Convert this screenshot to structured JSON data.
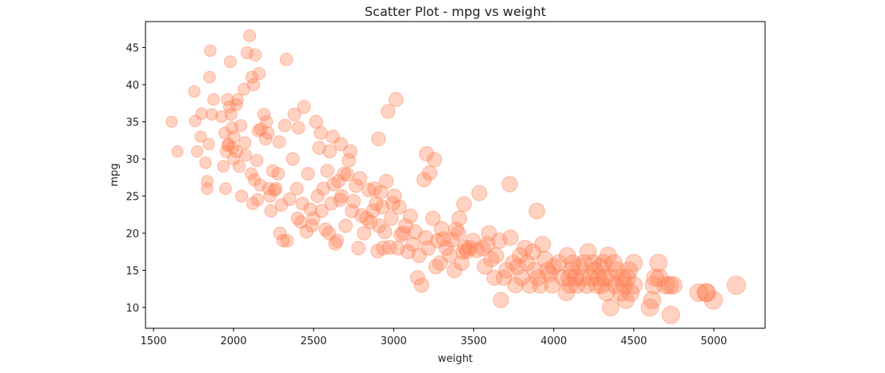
{
  "chart_data": {
    "type": "scatter",
    "title": "Scatter Plot - mpg vs weight",
    "xlabel": "weight",
    "ylabel": "mpg",
    "xlim": [
      1450,
      5320
    ],
    "ylim": [
      7.2,
      48.5
    ],
    "xticks": [
      1500,
      2000,
      2500,
      3000,
      3500,
      4000,
      4500,
      5000
    ],
    "yticks": [
      10,
      15,
      20,
      25,
      30,
      35,
      40,
      45
    ],
    "grid": false,
    "color": "#ff7f50",
    "opacity": 0.35,
    "size_note": "marker area increases with weight",
    "points": [
      [
        1613,
        35
      ],
      [
        1649,
        31
      ],
      [
        1755,
        39.1
      ],
      [
        1760,
        35.1
      ],
      [
        1773,
        31
      ],
      [
        1795,
        33
      ],
      [
        1800,
        36.1
      ],
      [
        1825,
        29.5
      ],
      [
        1835,
        26
      ],
      [
        1836,
        27
      ],
      [
        1845,
        32
      ],
      [
        1850,
        41
      ],
      [
        1855,
        44.6
      ],
      [
        1865,
        36
      ],
      [
        1875,
        38
      ],
      [
        1925,
        35.7
      ],
      [
        1937,
        29
      ],
      [
        1945,
        33.5
      ],
      [
        1950,
        26
      ],
      [
        1955,
        31
      ],
      [
        1963,
        38
      ],
      [
        1965,
        31.8
      ],
      [
        1968,
        32
      ],
      [
        1975,
        37
      ],
      [
        1980,
        43.1
      ],
      [
        1985,
        36
      ],
      [
        1990,
        34.2
      ],
      [
        1995,
        31.5
      ],
      [
        2000,
        30
      ],
      [
        2003,
        33
      ],
      [
        2019,
        37.3
      ],
      [
        2020,
        31
      ],
      [
        2025,
        38
      ],
      [
        2035,
        29
      ],
      [
        2045,
        34.5
      ],
      [
        2050,
        25
      ],
      [
        2065,
        39.4
      ],
      [
        2070,
        32.2
      ],
      [
        2075,
        30.5
      ],
      [
        2085,
        44.3
      ],
      [
        2100,
        46.6
      ],
      [
        2110,
        28
      ],
      [
        2115,
        41
      ],
      [
        2120,
        24
      ],
      [
        2125,
        40
      ],
      [
        2130,
        27.2
      ],
      [
        2135,
        44
      ],
      [
        2145,
        29.8
      ],
      [
        2150,
        24.5
      ],
      [
        2155,
        33.8
      ],
      [
        2160,
        41.5
      ],
      [
        2165,
        26.5
      ],
      [
        2170,
        34
      ],
      [
        2190,
        36
      ],
      [
        2200,
        32.7
      ],
      [
        2205,
        35
      ],
      [
        2215,
        33.5
      ],
      [
        2220,
        26
      ],
      [
        2228,
        25
      ],
      [
        2234,
        23
      ],
      [
        2245,
        28.4
      ],
      [
        2255,
        25.8
      ],
      [
        2265,
        26
      ],
      [
        2278,
        28
      ],
      [
        2285,
        32.3
      ],
      [
        2290,
        20
      ],
      [
        2300,
        23.8
      ],
      [
        2310,
        19
      ],
      [
        2320,
        34.5
      ],
      [
        2330,
        43.4
      ],
      [
        2335,
        19
      ],
      [
        2350,
        24.6
      ],
      [
        2370,
        30
      ],
      [
        2380,
        36
      ],
      [
        2395,
        26
      ],
      [
        2400,
        22
      ],
      [
        2405,
        34.2
      ],
      [
        2420,
        21.5
      ],
      [
        2430,
        24
      ],
      [
        2440,
        37
      ],
      [
        2455,
        20.2
      ],
      [
        2465,
        28
      ],
      [
        2480,
        23.2
      ],
      [
        2490,
        21
      ],
      [
        2500,
        22
      ],
      [
        2515,
        35
      ],
      [
        2525,
        25
      ],
      [
        2535,
        31.5
      ],
      [
        2545,
        33.5
      ],
      [
        2550,
        23
      ],
      [
        2560,
        26
      ],
      [
        2575,
        20.5
      ],
      [
        2585,
        28.4
      ],
      [
        2595,
        20
      ],
      [
        2600,
        31
      ],
      [
        2610,
        24
      ],
      [
        2620,
        33
      ],
      [
        2625,
        26.6
      ],
      [
        2635,
        18.6
      ],
      [
        2645,
        19
      ],
      [
        2655,
        27
      ],
      [
        2665,
        24.5
      ],
      [
        2670,
        32
      ],
      [
        2675,
        25
      ],
      [
        2690,
        28
      ],
      [
        2700,
        21
      ],
      [
        2710,
        27.9
      ],
      [
        2720,
        29.8
      ],
      [
        2730,
        31
      ],
      [
        2740,
        23
      ],
      [
        2750,
        24.3
      ],
      [
        2765,
        26.4
      ],
      [
        2780,
        18
      ],
      [
        2790,
        27.4
      ],
      [
        2800,
        22.4
      ],
      [
        2815,
        20
      ],
      [
        2830,
        22
      ],
      [
        2845,
        25.8
      ],
      [
        2855,
        21.5
      ],
      [
        2870,
        23
      ],
      [
        2880,
        26
      ],
      [
        2890,
        24
      ],
      [
        2900,
        17.6
      ],
      [
        2905,
        32.7
      ],
      [
        2910,
        21
      ],
      [
        2920,
        25.5
      ],
      [
        2930,
        23.5
      ],
      [
        2935,
        18
      ],
      [
        2945,
        20.2
      ],
      [
        2955,
        27
      ],
      [
        2965,
        36.4
      ],
      [
        2975,
        18.1
      ],
      [
        2985,
        22
      ],
      [
        2995,
        24
      ],
      [
        3005,
        25
      ],
      [
        3015,
        38
      ],
      [
        3025,
        18
      ],
      [
        3035,
        23.5
      ],
      [
        3045,
        19.8
      ],
      [
        3060,
        20
      ],
      [
        3075,
        21
      ],
      [
        3090,
        17.5
      ],
      [
        3105,
        22.3
      ],
      [
        3120,
        18.5
      ],
      [
        3135,
        20.2
      ],
      [
        3150,
        14
      ],
      [
        3160,
        17
      ],
      [
        3175,
        13
      ],
      [
        3190,
        27.2
      ],
      [
        3200,
        19.4
      ],
      [
        3205,
        30.7
      ],
      [
        3215,
        18
      ],
      [
        3225,
        28.1
      ],
      [
        3245,
        22
      ],
      [
        3255,
        29.9
      ],
      [
        3265,
        15.5
      ],
      [
        3275,
        19
      ],
      [
        3290,
        16
      ],
      [
        3300,
        20.6
      ],
      [
        3310,
        19.2
      ],
      [
        3330,
        18
      ],
      [
        3350,
        17
      ],
      [
        3365,
        19.1
      ],
      [
        3380,
        15
      ],
      [
        3390,
        20.5
      ],
      [
        3405,
        20
      ],
      [
        3410,
        22
      ],
      [
        3425,
        16
      ],
      [
        3435,
        17.5
      ],
      [
        3440,
        23.9
      ],
      [
        3445,
        18.1
      ],
      [
        3460,
        17.6
      ],
      [
        3475,
        18
      ],
      [
        3495,
        19
      ],
      [
        3520,
        17.7
      ],
      [
        3535,
        25.4
      ],
      [
        3555,
        18
      ],
      [
        3570,
        15.5
      ],
      [
        3585,
        18.5
      ],
      [
        3595,
        20
      ],
      [
        3610,
        16.5
      ],
      [
        3630,
        14
      ],
      [
        3640,
        17
      ],
      [
        3660,
        19
      ],
      [
        3670,
        11
      ],
      [
        3690,
        14
      ],
      [
        3705,
        15
      ],
      [
        3725,
        26.6
      ],
      [
        3730,
        19.4
      ],
      [
        3745,
        16
      ],
      [
        3760,
        13
      ],
      [
        3775,
        15.5
      ],
      [
        3790,
        17
      ],
      [
        3800,
        14
      ],
      [
        3820,
        18
      ],
      [
        3835,
        16
      ],
      [
        3850,
        13
      ],
      [
        3870,
        17.5
      ],
      [
        3880,
        15
      ],
      [
        3895,
        23
      ],
      [
        3900,
        14
      ],
      [
        3915,
        13
      ],
      [
        3930,
        18.5
      ],
      [
        3945,
        16.5
      ],
      [
        3960,
        15
      ],
      [
        3975,
        14.5
      ],
      [
        3990,
        13
      ],
      [
        4000,
        15.5
      ],
      [
        4030,
        16
      ],
      [
        4055,
        14
      ],
      [
        4080,
        12
      ],
      [
        4085,
        17
      ],
      [
        4095,
        14
      ],
      [
        4100,
        13
      ],
      [
        4110,
        15
      ],
      [
        4120,
        16
      ],
      [
        4135,
        14
      ],
      [
        4145,
        13
      ],
      [
        4160,
        15.5
      ],
      [
        4180,
        14
      ],
      [
        4190,
        16
      ],
      [
        4205,
        13
      ],
      [
        4215,
        17.5
      ],
      [
        4230,
        14
      ],
      [
        4245,
        16
      ],
      [
        4257,
        15
      ],
      [
        4270,
        13
      ],
      [
        4280,
        14
      ],
      [
        4290,
        15.5
      ],
      [
        4300,
        13
      ],
      [
        4310,
        16
      ],
      [
        4320,
        14
      ],
      [
        4330,
        12
      ],
      [
        4340,
        17
      ],
      [
        4355,
        10
      ],
      [
        4360,
        14
      ],
      [
        4375,
        16
      ],
      [
        4385,
        13
      ],
      [
        4395,
        15
      ],
      [
        4420,
        12
      ],
      [
        4430,
        14
      ],
      [
        4440,
        13
      ],
      [
        4450,
        11
      ],
      [
        4460,
        14
      ],
      [
        4470,
        15
      ],
      [
        4480,
        12
      ],
      [
        4500,
        13
      ],
      [
        4500,
        16
      ],
      [
        4600,
        10
      ],
      [
        4615,
        11
      ],
      [
        4625,
        13
      ],
      [
        4633,
        14
      ],
      [
        4654,
        16
      ],
      [
        4660,
        14
      ],
      [
        4700,
        13
      ],
      [
        4725,
        13
      ],
      [
        4732,
        9
      ],
      [
        4746,
        13
      ],
      [
        4906,
        12
      ],
      [
        4951,
        12
      ],
      [
        4955,
        12
      ],
      [
        4997,
        11
      ],
      [
        5140,
        13
      ]
    ]
  }
}
